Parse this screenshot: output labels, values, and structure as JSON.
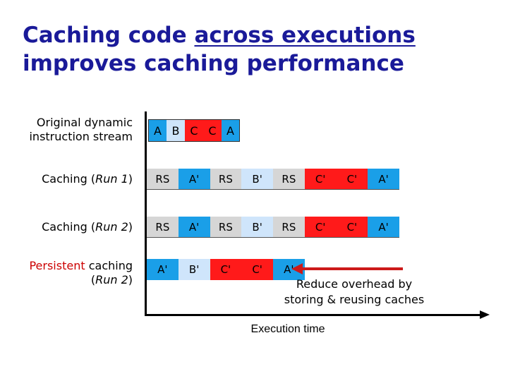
{
  "title": {
    "line1_pre": "Caching code ",
    "line1_underlined": "across executions",
    "line2": "improves caching performance"
  },
  "rows": {
    "original": {
      "label_line1": "Original dynamic",
      "label_line2": "instruction stream"
    },
    "run1": {
      "label_pre": "Caching (",
      "label_italic": "Run 1",
      "label_post": ")"
    },
    "run2": {
      "label_pre": "Caching (",
      "label_italic": "Run 2",
      "label_post": ")"
    },
    "persistent": {
      "label_colored": "Persistent",
      "label_rest": " caching",
      "label_line2_pre": "(",
      "label_line2_italic": "Run 2",
      "label_line2_post": ")"
    }
  },
  "streams": {
    "original": [
      "A",
      "B",
      "C",
      "C",
      "A"
    ],
    "run1": [
      "RS",
      "A'",
      "RS",
      "B'",
      "RS",
      "C'",
      "C'",
      "A'"
    ],
    "run2": [
      "RS",
      "A'",
      "RS",
      "B'",
      "RS",
      "C'",
      "C'",
      "A'"
    ],
    "persistent": [
      "A'",
      "B'",
      "C'",
      "C'",
      "A'"
    ]
  },
  "annotation": {
    "line1": "Reduce overhead by",
    "line2": "storing & reusing caches"
  },
  "axis": {
    "xlabel": "Execution time"
  },
  "colors": {
    "title": "#1a1a99",
    "rs_block": "#d6d6d6",
    "a_block": "#1a9fe8",
    "b_block": "#cfe5fb",
    "c_block": "#ff1a1a",
    "arrow": "#cc1a1a",
    "persistent_label": "#cc0000"
  }
}
